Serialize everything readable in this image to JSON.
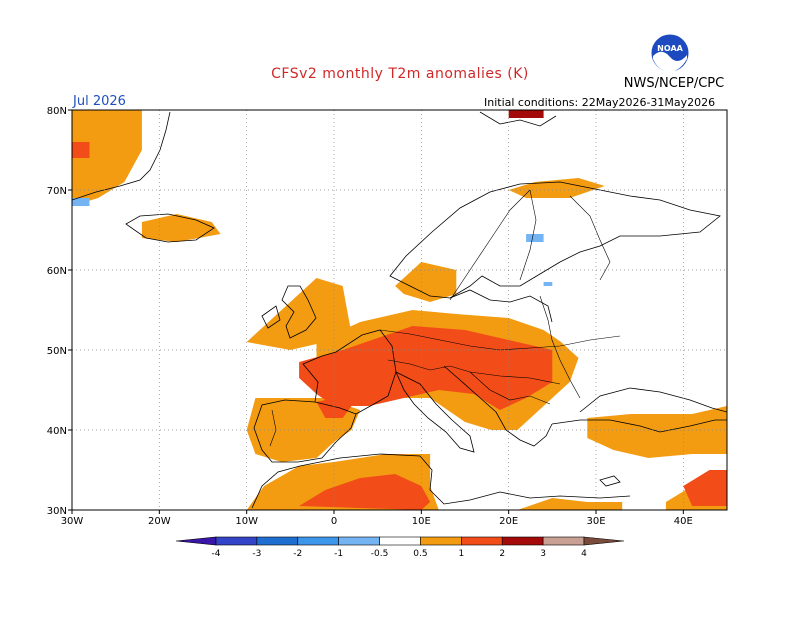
{
  "header": {
    "title": "CFSv2 monthly T2m anomalies (K)",
    "organization": "NWS/NCEP/CPC",
    "logo_text": "NOAA",
    "month": "Jul 2026",
    "initial_conditions": "Initial conditions: 22May2026-31May2026"
  },
  "map": {
    "lon_range": [
      -30,
      45
    ],
    "lat_range": [
      30,
      80
    ],
    "lon_ticks": [
      {
        "value": -30,
        "label": "30W"
      },
      {
        "value": -20,
        "label": "20W"
      },
      {
        "value": -10,
        "label": "10W"
      },
      {
        "value": 0,
        "label": "0"
      },
      {
        "value": 10,
        "label": "10E"
      },
      {
        "value": 20,
        "label": "20E"
      },
      {
        "value": 30,
        "label": "30E"
      },
      {
        "value": 40,
        "label": "40E"
      }
    ],
    "lat_ticks": [
      {
        "value": 30,
        "label": "30N"
      },
      {
        "value": 40,
        "label": "40N"
      },
      {
        "value": 50,
        "label": "50N"
      },
      {
        "value": 60,
        "label": "60N"
      },
      {
        "value": 70,
        "label": "70N"
      },
      {
        "value": 80,
        "label": "80N"
      }
    ],
    "grid": true,
    "anomaly_regions": [
      {
        "level": "0.5-1",
        "color": "#f39c12",
        "polygon": [
          [
            -30,
            80
          ],
          [
            -22,
            80
          ],
          [
            -22,
            75
          ],
          [
            -24,
            71
          ],
          [
            -27,
            69
          ],
          [
            -30,
            68
          ]
        ]
      },
      {
        "level": "0.5-1",
        "color": "#f39c12",
        "polygon": [
          [
            -22,
            66
          ],
          [
            -18,
            67
          ],
          [
            -14,
            66
          ],
          [
            -13,
            64.5
          ],
          [
            -18,
            63.5
          ],
          [
            -22,
            64
          ]
        ]
      },
      {
        "level": "0.5-1",
        "color": "#f39c12",
        "polygon": [
          [
            -10,
            51
          ],
          [
            -6,
            55
          ],
          [
            -2,
            59
          ],
          [
            1,
            58
          ],
          [
            2,
            52
          ],
          [
            -1,
            51
          ],
          [
            -5,
            50
          ]
        ]
      },
      {
        "level": "0.5-1",
        "color": "#f39c12",
        "polygon": [
          [
            7,
            58
          ],
          [
            10,
            61
          ],
          [
            14,
            60
          ],
          [
            14,
            57
          ],
          [
            11,
            56
          ],
          [
            8,
            57
          ]
        ]
      },
      {
        "level": "0.5-1",
        "color": "#f39c12",
        "polygon": [
          [
            -9,
            44
          ],
          [
            -1,
            44
          ],
          [
            3,
            42.5
          ],
          [
            2,
            40
          ],
          [
            0,
            38.5
          ],
          [
            -2,
            36.5
          ],
          [
            -6,
            36
          ],
          [
            -9,
            37
          ],
          [
            -10,
            40
          ]
        ]
      },
      {
        "level": "0.5-1",
        "color": "#f39c12",
        "polygon": [
          [
            -10,
            30
          ],
          [
            -8,
            33
          ],
          [
            -4,
            35.5
          ],
          [
            0,
            36
          ],
          [
            6,
            37
          ],
          [
            11,
            37
          ],
          [
            11,
            33
          ],
          [
            12,
            30
          ]
        ]
      },
      {
        "level": "0.5-1",
        "color": "#f39c12",
        "polygon": [
          [
            0,
            52
          ],
          [
            3,
            53.5
          ],
          [
            9,
            55
          ],
          [
            14,
            54.5
          ],
          [
            20,
            54
          ],
          [
            24,
            52.5
          ],
          [
            26,
            51
          ],
          [
            28,
            49
          ],
          [
            27,
            46
          ],
          [
            24,
            43
          ],
          [
            21,
            40
          ],
          [
            18,
            40
          ],
          [
            15,
            41
          ],
          [
            11,
            44
          ],
          [
            7,
            44
          ],
          [
            3,
            43
          ],
          [
            0,
            46
          ],
          [
            -2,
            48
          ],
          [
            -2,
            51
          ]
        ]
      },
      {
        "level": "0.5-1",
        "color": "#f39c12",
        "polygon": [
          [
            29,
            41.5
          ],
          [
            34,
            42
          ],
          [
            41,
            42
          ],
          [
            45,
            43
          ],
          [
            45,
            37
          ],
          [
            41,
            37
          ],
          [
            36,
            36.5
          ],
          [
            32,
            37.5
          ],
          [
            29,
            39
          ]
        ]
      },
      {
        "level": "0.5-1",
        "color": "#f39c12",
        "polygon": [
          [
            38,
            31
          ],
          [
            41,
            33
          ],
          [
            45,
            34
          ],
          [
            45,
            30
          ],
          [
            38,
            30
          ]
        ]
      },
      {
        "level": "0.5-1",
        "color": "#f39c12",
        "polygon": [
          [
            21,
            30
          ],
          [
            25,
            31.5
          ],
          [
            29,
            31
          ],
          [
            33,
            31
          ],
          [
            33,
            30
          ]
        ]
      },
      {
        "level": "0.5-1",
        "color": "#f39c12",
        "polygon": [
          [
            20,
            70
          ],
          [
            23,
            71
          ],
          [
            28,
            71.5
          ],
          [
            31,
            70.5
          ],
          [
            27,
            69
          ],
          [
            22,
            69
          ]
        ]
      },
      {
        "level": "1-2",
        "color": "#f24c18",
        "polygon": [
          [
            -4,
            48.5
          ],
          [
            1,
            50
          ],
          [
            5,
            51.5
          ],
          [
            9,
            53
          ],
          [
            15,
            52.5
          ],
          [
            21,
            51
          ],
          [
            25,
            50
          ],
          [
            25,
            46
          ],
          [
            22,
            44
          ],
          [
            19,
            42.5
          ],
          [
            16,
            44.5
          ],
          [
            12,
            45
          ],
          [
            8,
            44
          ],
          [
            4,
            43
          ],
          [
            0,
            43
          ],
          [
            -2,
            44.5
          ],
          [
            -4,
            46.5
          ]
        ]
      },
      {
        "level": "1-2",
        "color": "#f24c18",
        "polygon": [
          [
            -2,
            43.5
          ],
          [
            0,
            44
          ],
          [
            2,
            43
          ],
          [
            1,
            41.5
          ],
          [
            -1,
            41.5
          ]
        ]
      },
      {
        "level": "1-2",
        "color": "#f24c18",
        "polygon": [
          [
            -4,
            30.5
          ],
          [
            -1,
            32.5
          ],
          [
            3,
            34
          ],
          [
            7,
            34.5
          ],
          [
            10,
            33
          ],
          [
            11,
            31
          ],
          [
            10,
            30
          ]
        ]
      },
      {
        "level": "1-2",
        "color": "#f24c18",
        "polygon": [
          [
            40,
            33
          ],
          [
            43,
            35
          ],
          [
            45,
            35
          ],
          [
            45,
            30.5
          ],
          [
            41,
            30.5
          ]
        ]
      },
      {
        "level": "1-2",
        "color": "#f24c18",
        "polygon": [
          [
            -30,
            76
          ],
          [
            -28,
            76
          ],
          [
            -28,
            74
          ],
          [
            -30,
            74
          ]
        ]
      },
      {
        "level": "2-3",
        "color": "#a40a0a",
        "polygon": [
          [
            20,
            80
          ],
          [
            24,
            80
          ],
          [
            24,
            79
          ],
          [
            20,
            79
          ]
        ]
      },
      {
        "level": "-1--0.5",
        "color": "#74b4f2",
        "polygon": [
          [
            -30,
            69
          ],
          [
            -28,
            69
          ],
          [
            -28,
            68
          ],
          [
            -30,
            68
          ]
        ]
      },
      {
        "level": "-1--0.5",
        "color": "#74b4f2",
        "polygon": [
          [
            22,
            64.5
          ],
          [
            24,
            64.5
          ],
          [
            24,
            63.5
          ],
          [
            22,
            63.5
          ]
        ]
      },
      {
        "level": "-1--0.5",
        "color": "#74b4f2",
        "polygon": [
          [
            24,
            58.5
          ],
          [
            25,
            58.5
          ],
          [
            25,
            58
          ],
          [
            24,
            58
          ]
        ]
      }
    ]
  },
  "colorbar": {
    "bins": [
      {
        "color": "#3a16a8"
      },
      {
        "color": "#3344c8"
      },
      {
        "color": "#1f6ed2"
      },
      {
        "color": "#3c96ea"
      },
      {
        "color": "#74b4f2"
      },
      {
        "color": "#ffffff"
      },
      {
        "color": "#f39c12"
      },
      {
        "color": "#f24c18"
      },
      {
        "color": "#a40a0a"
      },
      {
        "color": "#c8a094"
      },
      {
        "color": "#7a4a3a"
      }
    ],
    "labels": [
      "-4",
      "-3",
      "-2",
      "-1",
      "-0.5",
      "0.5",
      "1",
      "2",
      "3",
      "4"
    ]
  }
}
